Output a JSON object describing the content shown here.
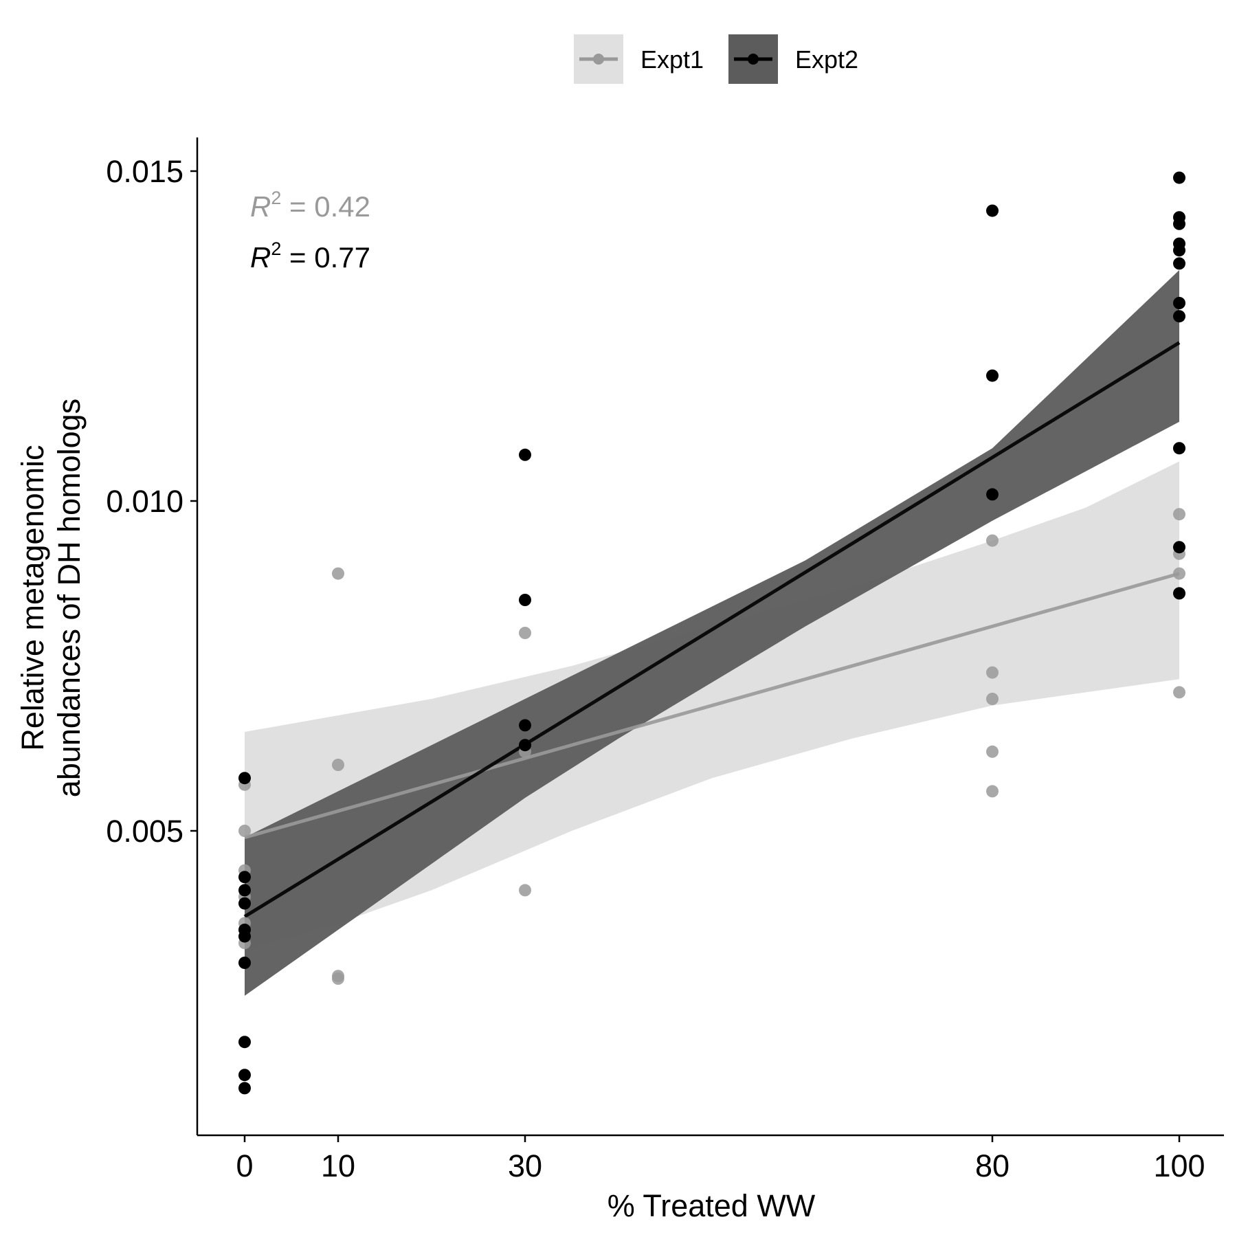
{
  "chart_data": {
    "type": "scatter",
    "xlabel": "% Treated WW",
    "ylabel_lines": [
      "Relative metagenomic",
      "abundances of DH homologs"
    ],
    "xlim": [
      -5,
      105
    ],
    "ylim": [
      0.00102,
      0.01575
    ],
    "x_ticks": [
      0,
      10,
      30,
      80,
      100
    ],
    "y_ticks": [
      0.005,
      0.01,
      0.015
    ],
    "y_tick_labels": [
      "0.005",
      "0.010",
      "0.015"
    ],
    "legend_position": "top",
    "annotations": [
      {
        "prefix": "R",
        "sup": "2",
        "text": " = 0.42",
        "series": "Expt1"
      },
      {
        "prefix": "R",
        "sup": "2",
        "text": " = 0.77",
        "series": "Expt2"
      }
    ],
    "series": [
      {
        "name": "Expt1",
        "color": "#999999",
        "band_color": "#e0e0e0",
        "points": [
          [
            0,
            0.0057
          ],
          [
            0,
            0.005
          ],
          [
            0,
            0.0044
          ],
          [
            0,
            0.004
          ],
          [
            0,
            0.0036
          ],
          [
            0,
            0.0033
          ],
          [
            10,
            0.0089
          ],
          [
            10,
            0.006
          ],
          [
            10,
            0.0028
          ],
          [
            10,
            0.00276
          ],
          [
            30,
            0.008
          ],
          [
            30,
            0.0066
          ],
          [
            30,
            0.0062
          ],
          [
            30,
            0.0041
          ],
          [
            80,
            0.0094
          ],
          [
            80,
            0.0074
          ],
          [
            80,
            0.007
          ],
          [
            80,
            0.0062
          ],
          [
            80,
            0.0056
          ],
          [
            80,
            0.0101
          ],
          [
            100,
            0.0108
          ],
          [
            100,
            0.0098
          ],
          [
            100,
            0.0092
          ],
          [
            100,
            0.0089
          ],
          [
            100,
            0.0086
          ],
          [
            100,
            0.0071
          ]
        ],
        "fit": [
          [
            0,
            0.0049
          ],
          [
            100,
            0.0089
          ]
        ],
        "band_upper": [
          [
            0,
            0.0065
          ],
          [
            20,
            0.007
          ],
          [
            35,
            0.0075
          ],
          [
            50,
            0.0081
          ],
          [
            65,
            0.0087
          ],
          [
            80,
            0.0094
          ],
          [
            90,
            0.0099
          ],
          [
            100,
            0.0106
          ]
        ],
        "band_lower": [
          [
            0,
            0.0032
          ],
          [
            10,
            0.0036
          ],
          [
            20,
            0.0041
          ],
          [
            35,
            0.005
          ],
          [
            50,
            0.0058
          ],
          [
            65,
            0.0064
          ],
          [
            80,
            0.0069
          ],
          [
            90,
            0.0071
          ],
          [
            100,
            0.0073
          ]
        ]
      },
      {
        "name": "Expt2",
        "color": "#000000",
        "band_color": "#5c5c5c",
        "points": [
          [
            0,
            0.0058
          ],
          [
            0,
            0.0043
          ],
          [
            0,
            0.0041
          ],
          [
            0,
            0.0039
          ],
          [
            0,
            0.0035
          ],
          [
            0,
            0.0034
          ],
          [
            0,
            0.003
          ],
          [
            0,
            0.0018
          ],
          [
            0,
            0.0013
          ],
          [
            0,
            0.0011
          ],
          [
            30,
            0.0107
          ],
          [
            30,
            0.0085
          ],
          [
            30,
            0.0066
          ],
          [
            30,
            0.0063
          ],
          [
            80,
            0.0144
          ],
          [
            80,
            0.0119
          ],
          [
            80,
            0.0101
          ],
          [
            100,
            0.0149
          ],
          [
            100,
            0.0143
          ],
          [
            100,
            0.0142
          ],
          [
            100,
            0.0139
          ],
          [
            100,
            0.0138
          ],
          [
            100,
            0.0136
          ],
          [
            100,
            0.013
          ],
          [
            100,
            0.0128
          ],
          [
            100,
            0.0108
          ],
          [
            100,
            0.0093
          ],
          [
            100,
            0.0086
          ]
        ],
        "fit": [
          [
            0,
            0.0037
          ],
          [
            100,
            0.0124
          ]
        ],
        "band_upper": [
          [
            0,
            0.0049
          ],
          [
            20,
            0.0063
          ],
          [
            30,
            0.007
          ],
          [
            40,
            0.0077
          ],
          [
            60,
            0.0091
          ],
          [
            80,
            0.0108
          ],
          [
            100,
            0.0135
          ]
        ],
        "band_lower": [
          [
            0,
            0.0025
          ],
          [
            20,
            0.0045
          ],
          [
            30,
            0.0055
          ],
          [
            40,
            0.0064
          ],
          [
            60,
            0.0081
          ],
          [
            80,
            0.0097
          ],
          [
            100,
            0.0112
          ]
        ]
      }
    ]
  }
}
